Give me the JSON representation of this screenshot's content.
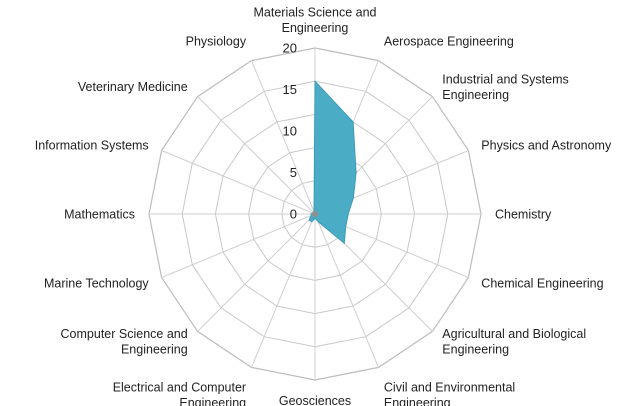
{
  "chart_data": {
    "type": "radar",
    "categories": [
      "Materials Science and Engineering",
      "Aerospace Engineering",
      "Industrial and Systems Engineering",
      "Physics and Astronomy",
      "Chemistry",
      "Chemical Engineering",
      "Agricultural and Biological Engineering",
      "Civil and Environmental Engineering",
      "Geosciences",
      "Electrical and Computer Engineering",
      "Computer Science and Engineering",
      "Marine Technology",
      "Mathematics",
      "Information Systems",
      "Veterinary Medicine",
      "Physiology"
    ],
    "label_lines": [
      [
        "Materials Science and",
        "Engineering"
      ],
      [
        "Aerospace Engineering"
      ],
      [
        "Industrial and Systems",
        "Engineering"
      ],
      [
        "Physics and Astronomy"
      ],
      [
        "Chemistry"
      ],
      [
        "Chemical Engineering"
      ],
      [
        "Agricultural and Biological",
        "Engineering"
      ],
      [
        "Civil and Environmental",
        "Engineering"
      ],
      [
        "Geosciences"
      ],
      [
        "Electrical and Computer",
        "Engineering"
      ],
      [
        "Computer Science and",
        "Engineering"
      ],
      [
        "Marine Technology"
      ],
      [
        "Mathematics"
      ],
      [
        "Information Systems"
      ],
      [
        "Veterinary Medicine"
      ],
      [
        "Physiology"
      ]
    ],
    "series": [
      {
        "values": [
          16,
          12,
          7,
          5,
          4,
          4,
          5,
          1,
          0.5,
          1,
          1,
          0.5,
          0.5,
          0.3,
          0.3,
          0.3
        ]
      }
    ],
    "ticks": [
      0,
      5,
      10,
      15,
      20
    ],
    "rlim": [
      0,
      20
    ],
    "grid": true,
    "legend": "none",
    "colors": {
      "series_fill": "#4bacc6",
      "series_stroke": "#3b9cb5",
      "grid": "#c8c8c8",
      "text": "#222222"
    }
  }
}
